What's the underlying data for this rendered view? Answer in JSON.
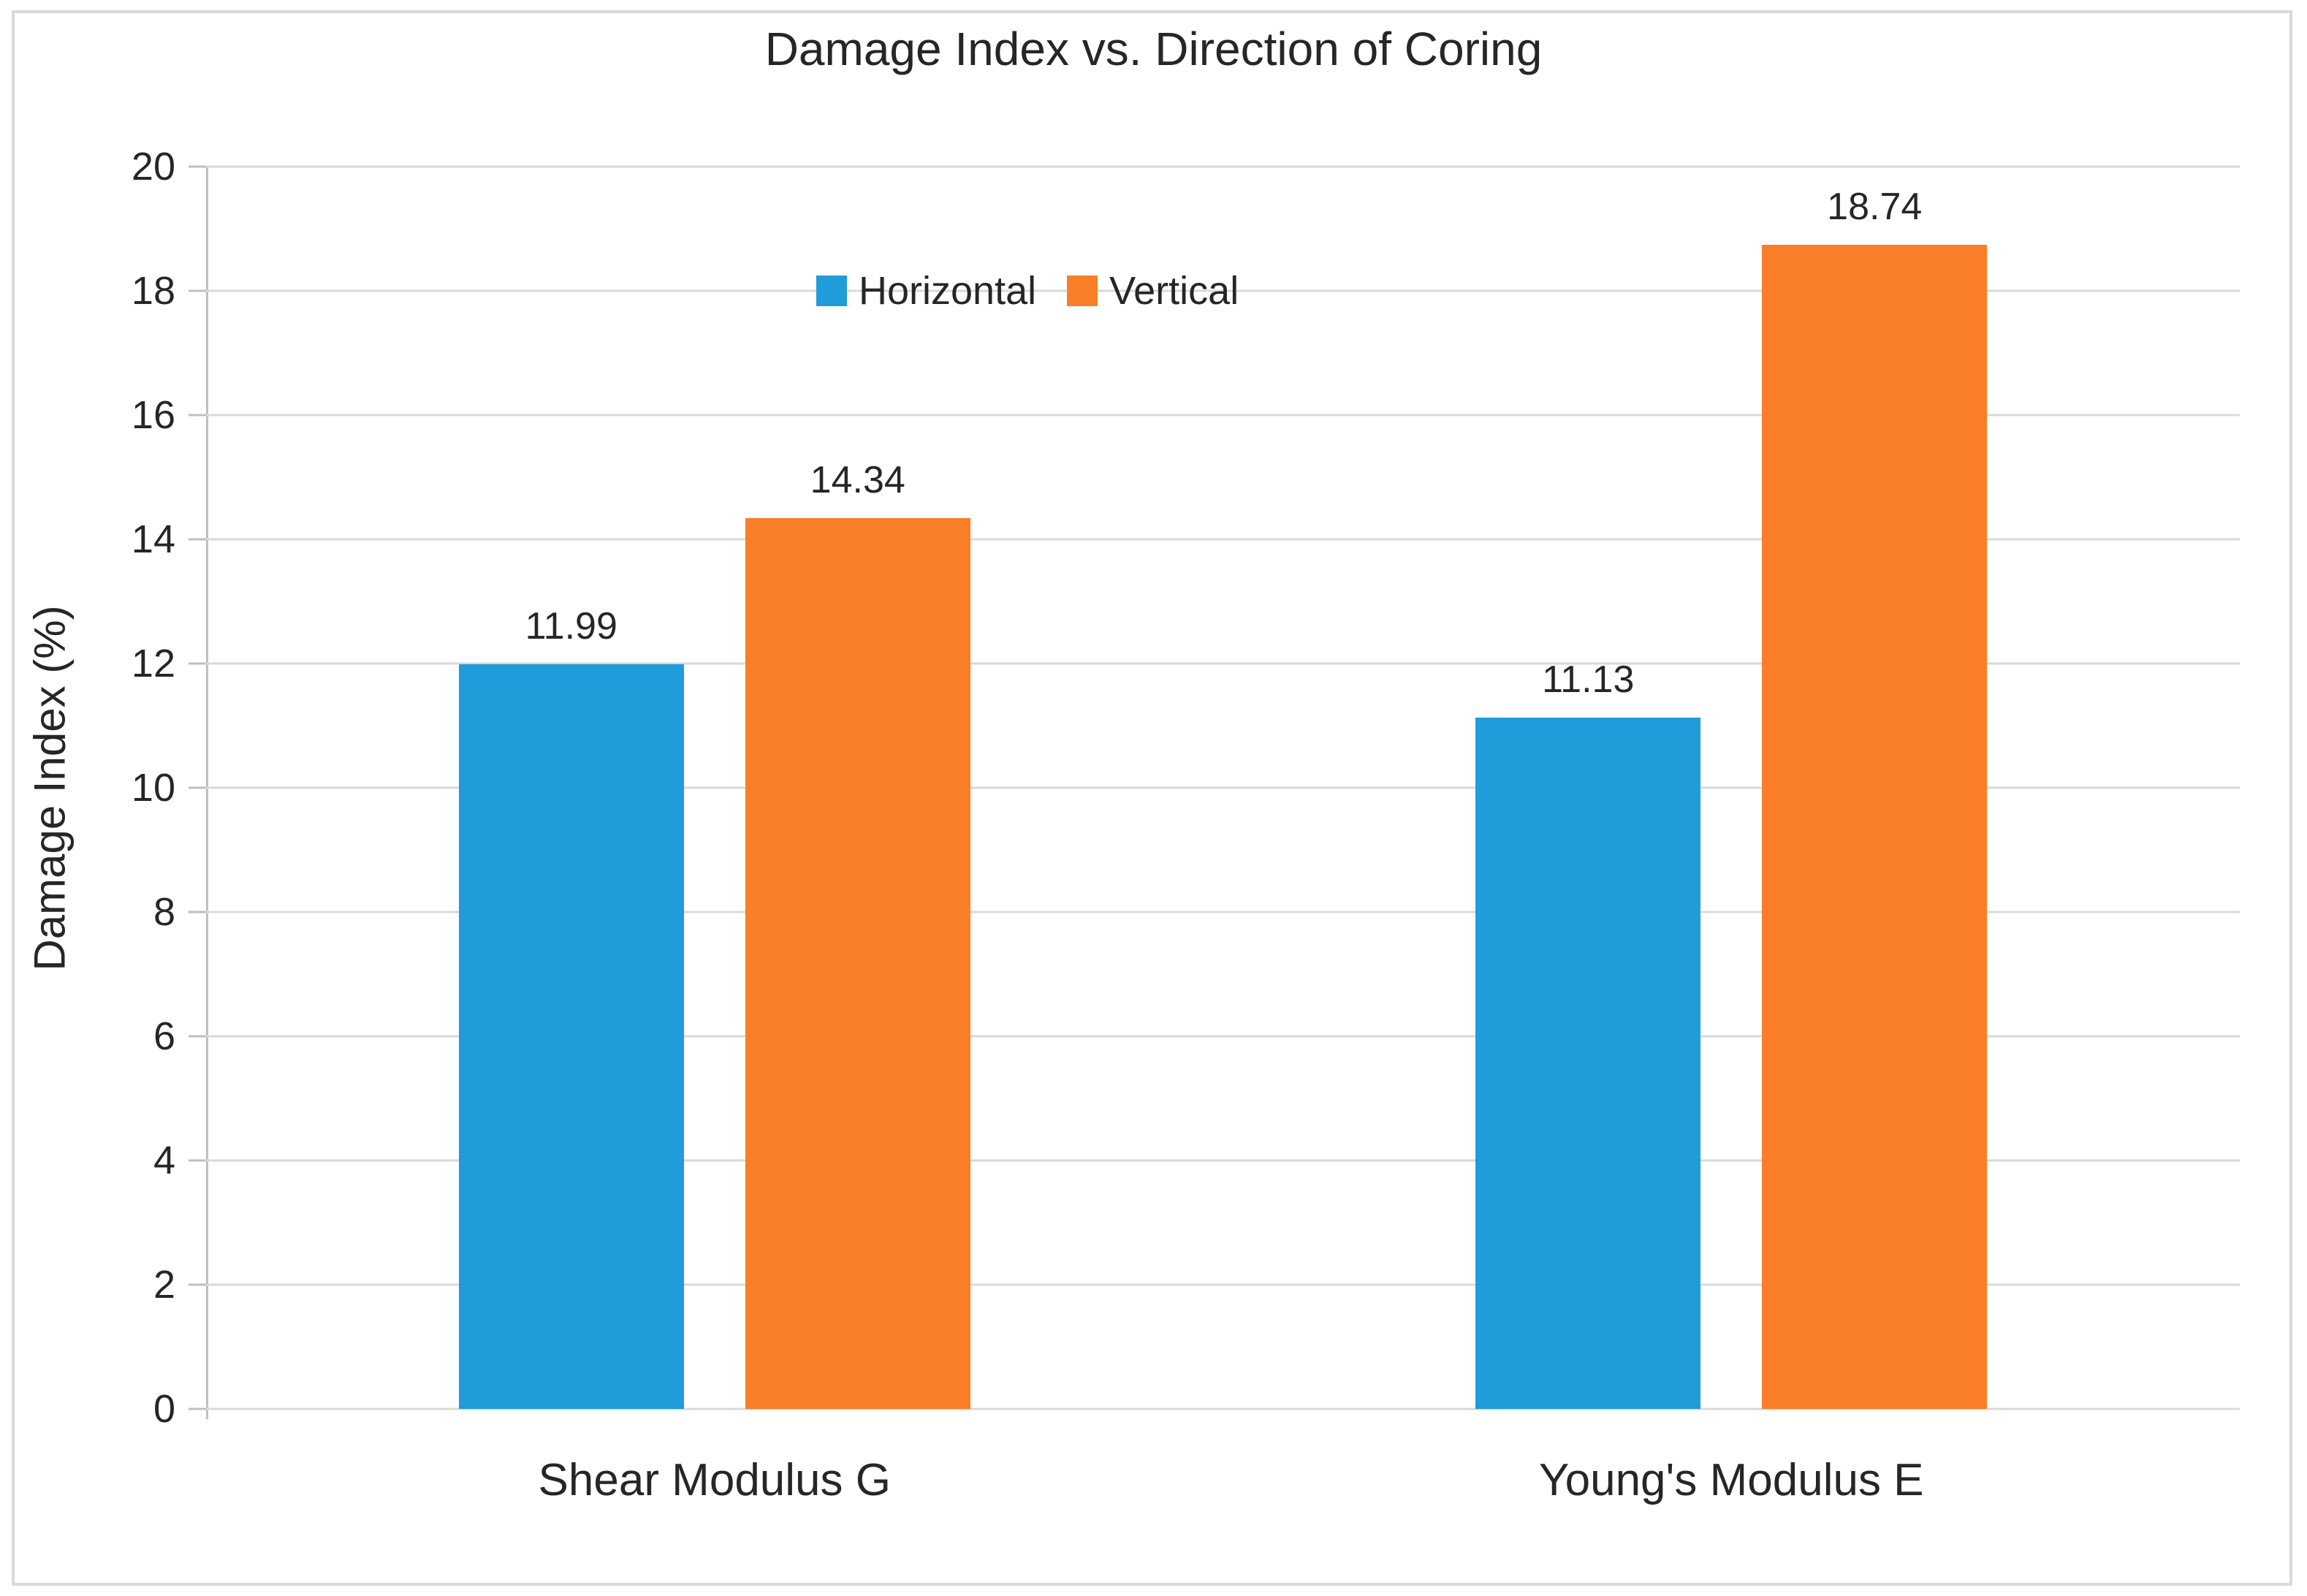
{
  "title": "Damage Index vs. Direction of Coring",
  "chart_data": {
    "type": "bar",
    "title": "Damage Index vs. Direction of Coring",
    "ylabel": "Damage Index (%)",
    "xlabel": "",
    "ylim": [
      0,
      20
    ],
    "ytick_step": 2,
    "yticks": [
      "0",
      "2",
      "4",
      "6",
      "8",
      "10",
      "12",
      "14",
      "16",
      "18",
      "20"
    ],
    "grid": true,
    "legend_position": "top-inside",
    "categories": [
      "Shear Modulus G",
      "Young's Modulus E"
    ],
    "series": [
      {
        "name": "Horizontal",
        "color": "#1F9CD9",
        "values": [
          11.99,
          11.13
        ],
        "labels": [
          "11.99",
          "11.13"
        ]
      },
      {
        "name": "Vertical",
        "color": "#F97E27",
        "values": [
          14.34,
          18.74
        ],
        "labels": [
          "14.34",
          "18.74"
        ]
      }
    ]
  },
  "colors": {
    "horizontal_series": "#1F9CD9",
    "vertical_series": "#F97E27",
    "gridline": "#D9D9D9",
    "axis_line": "#BFBFBF",
    "text": "#262626",
    "border": "#D9D9D9",
    "background": "#FFFFFF"
  }
}
